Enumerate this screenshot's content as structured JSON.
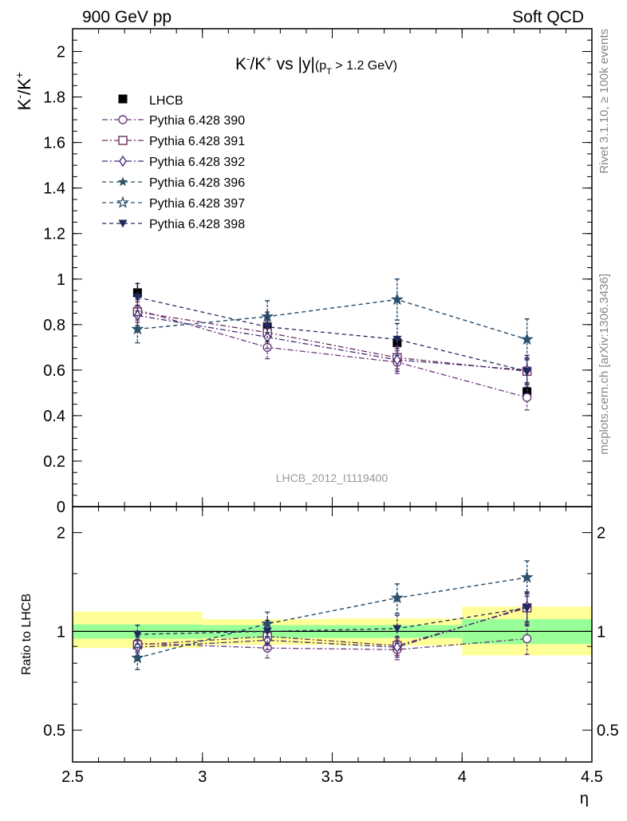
{
  "header": {
    "left": "900 GeV pp",
    "right": "Soft QCD"
  },
  "side": {
    "rivet": "Rivet 3.1.10, ≥ 100k events",
    "mcplots": "mcplots.cern.ch [arXiv:1306.3436]"
  },
  "top_panel": {
    "ylabel_base": "K",
    "ylabel_sup1": "-",
    "ylabel_slash": "/K",
    "ylabel_sup2": "+",
    "title": {
      "k": "K",
      "sup1": "-",
      "slash": "/K",
      "sup2": "+",
      "mid": " vs |y|",
      "paren_open": "(p",
      "sub": "T",
      "paren_close": " > 1.2 GeV)"
    },
    "watermark": "LHCB_2012_I1119400"
  },
  "ratio_panel": {
    "ylabel": "Ratio to LHCB"
  },
  "colors": {
    "data": "#000000",
    "p390": "#6b3a7a",
    "p391": "#6b2e5c",
    "p392": "#4a2a7a",
    "p396": "#2e5266",
    "p397": "#2c5170",
    "p398": "#1f2a5e",
    "band_inner": "#99ff99",
    "band_outer": "#ffff99"
  },
  "chart_data": [
    {
      "type": "line",
      "panel": "main",
      "xlim": [
        2.5,
        4.5
      ],
      "ylim": [
        0,
        2.1
      ],
      "xticks": [
        "2.5",
        "3",
        "3.5",
        "4",
        "4.5"
      ],
      "yticks": [
        "0",
        "0.2",
        "0.4",
        "0.6",
        "0.8",
        "1",
        "1.2",
        "1.4",
        "1.6",
        "1.8",
        "2"
      ],
      "xlabel": "η",
      "legend_position": "top-left",
      "data": {
        "name": "LHCB",
        "x": [
          2.75,
          3.25,
          3.75,
          4.25
        ],
        "y": [
          0.94,
          0.79,
          0.72,
          0.505
        ],
        "yerr": [
          0.045,
          0.035,
          0.035,
          0.035
        ],
        "xlow": [
          2.5,
          3.0,
          3.5,
          4.0
        ],
        "xhigh": [
          3.0,
          3.5,
          4.0,
          4.5
        ]
      },
      "series": [
        {
          "name": "Pythia 6.428 390",
          "marker": "circle-open",
          "color_key": "p390",
          "x": [
            2.75,
            3.25,
            3.75,
            4.25
          ],
          "y": [
            0.865,
            0.7,
            0.635,
            0.48
          ],
          "yerr": [
            0.045,
            0.05,
            0.05,
            0.055
          ]
        },
        {
          "name": "Pythia 6.428 391",
          "marker": "square-open",
          "color_key": "p391",
          "x": [
            2.75,
            3.25,
            3.75,
            4.25
          ],
          "y": [
            0.855,
            0.765,
            0.655,
            0.595
          ],
          "yerr": [
            0.045,
            0.05,
            0.05,
            0.055
          ]
        },
        {
          "name": "Pythia 6.428 392",
          "marker": "diamond-open",
          "color_key": "p392",
          "x": [
            2.75,
            3.25,
            3.75,
            4.25
          ],
          "y": [
            0.84,
            0.745,
            0.645,
            0.6
          ],
          "yerr": [
            0.045,
            0.05,
            0.05,
            0.055
          ]
        },
        {
          "name": "Pythia 6.428 396",
          "marker": "star-filled",
          "color_key": "p396",
          "x": [
            2.75,
            3.25,
            3.75,
            4.25
          ],
          "y": [
            0.78,
            0.835,
            0.91,
            0.735
          ],
          "yerr": [
            0.06,
            0.07,
            0.09,
            0.09
          ]
        },
        {
          "name": "Pythia 6.428 397",
          "marker": "star-open",
          "color_key": "p397",
          "x": [
            2.75,
            3.25,
            3.75,
            4.25
          ],
          "y": [
            0.78,
            0.835,
            0.91,
            0.735
          ],
          "yerr": [
            0.06,
            0.07,
            0.09,
            0.09
          ]
        },
        {
          "name": "Pythia 6.428 398",
          "marker": "triangle-down-filled",
          "color_key": "p398",
          "x": [
            2.75,
            3.25,
            3.75,
            4.25
          ],
          "y": [
            0.92,
            0.79,
            0.735,
            0.595
          ],
          "yerr": [
            0.06,
            0.065,
            0.07,
            0.07
          ]
        }
      ]
    },
    {
      "type": "line",
      "panel": "ratio",
      "xlim": [
        2.5,
        4.5
      ],
      "ylim": [
        0.4,
        2.4
      ],
      "yscale": "log",
      "xticks": [
        "2.5",
        "3",
        "3.5",
        "4",
        "4.5"
      ],
      "yticks": [
        "0.5",
        "1",
        "2"
      ],
      "ylabel": "Ratio to LHCB",
      "xlabel": "η",
      "reference": 1,
      "bands": [
        {
          "xlow": 2.5,
          "xhigh": 3.0,
          "inner": [
            0.95,
            1.05
          ],
          "outer": [
            0.89,
            1.15
          ]
        },
        {
          "xlow": 3.0,
          "xhigh": 3.5,
          "inner": [
            0.955,
            1.045
          ],
          "outer": [
            0.91,
            1.09
          ]
        },
        {
          "xlow": 3.5,
          "xhigh": 4.0,
          "inner": [
            0.955,
            1.045
          ],
          "outer": [
            0.905,
            1.095
          ]
        },
        {
          "xlow": 4.0,
          "xhigh": 4.5,
          "inner": [
            0.915,
            1.09
          ],
          "outer": [
            0.845,
            1.19
          ]
        }
      ],
      "series": [
        {
          "name": "Pythia 6.428 390",
          "marker": "circle-open",
          "color_key": "p390",
          "x": [
            2.75,
            3.25,
            3.75,
            4.25
          ],
          "y": [
            0.92,
            0.89,
            0.88,
            0.95
          ],
          "yerr": [
            0.05,
            0.06,
            0.06,
            0.1
          ]
        },
        {
          "name": "Pythia 6.428 391",
          "marker": "square-open",
          "color_key": "p391",
          "x": [
            2.75,
            3.25,
            3.75,
            4.25
          ],
          "y": [
            0.91,
            0.965,
            0.905,
            1.18
          ],
          "yerr": [
            0.05,
            0.06,
            0.06,
            0.12
          ]
        },
        {
          "name": "Pythia 6.428 392",
          "marker": "diamond-open",
          "color_key": "p392",
          "x": [
            2.75,
            3.25,
            3.75,
            4.25
          ],
          "y": [
            0.895,
            0.94,
            0.895,
            1.19
          ],
          "yerr": [
            0.05,
            0.06,
            0.06,
            0.12
          ]
        },
        {
          "name": "Pythia 6.428 396",
          "marker": "star-filled",
          "color_key": "p396",
          "x": [
            2.75,
            3.25,
            3.75,
            4.25
          ],
          "y": [
            0.83,
            1.055,
            1.265,
            1.46
          ],
          "yerr": [
            0.065,
            0.09,
            0.13,
            0.18
          ]
        },
        {
          "name": "Pythia 6.428 397",
          "marker": "star-open",
          "color_key": "p397",
          "x": [
            2.75,
            3.25,
            3.75,
            4.25
          ],
          "y": [
            0.83,
            1.055,
            1.265,
            1.46
          ],
          "yerr": [
            0.065,
            0.09,
            0.13,
            0.18
          ]
        },
        {
          "name": "Pythia 6.428 398",
          "marker": "triangle-down-filled",
          "color_key": "p398",
          "x": [
            2.75,
            3.25,
            3.75,
            4.25
          ],
          "y": [
            0.98,
            1.0,
            1.02,
            1.18
          ],
          "yerr": [
            0.065,
            0.08,
            0.1,
            0.14
          ]
        }
      ]
    }
  ]
}
